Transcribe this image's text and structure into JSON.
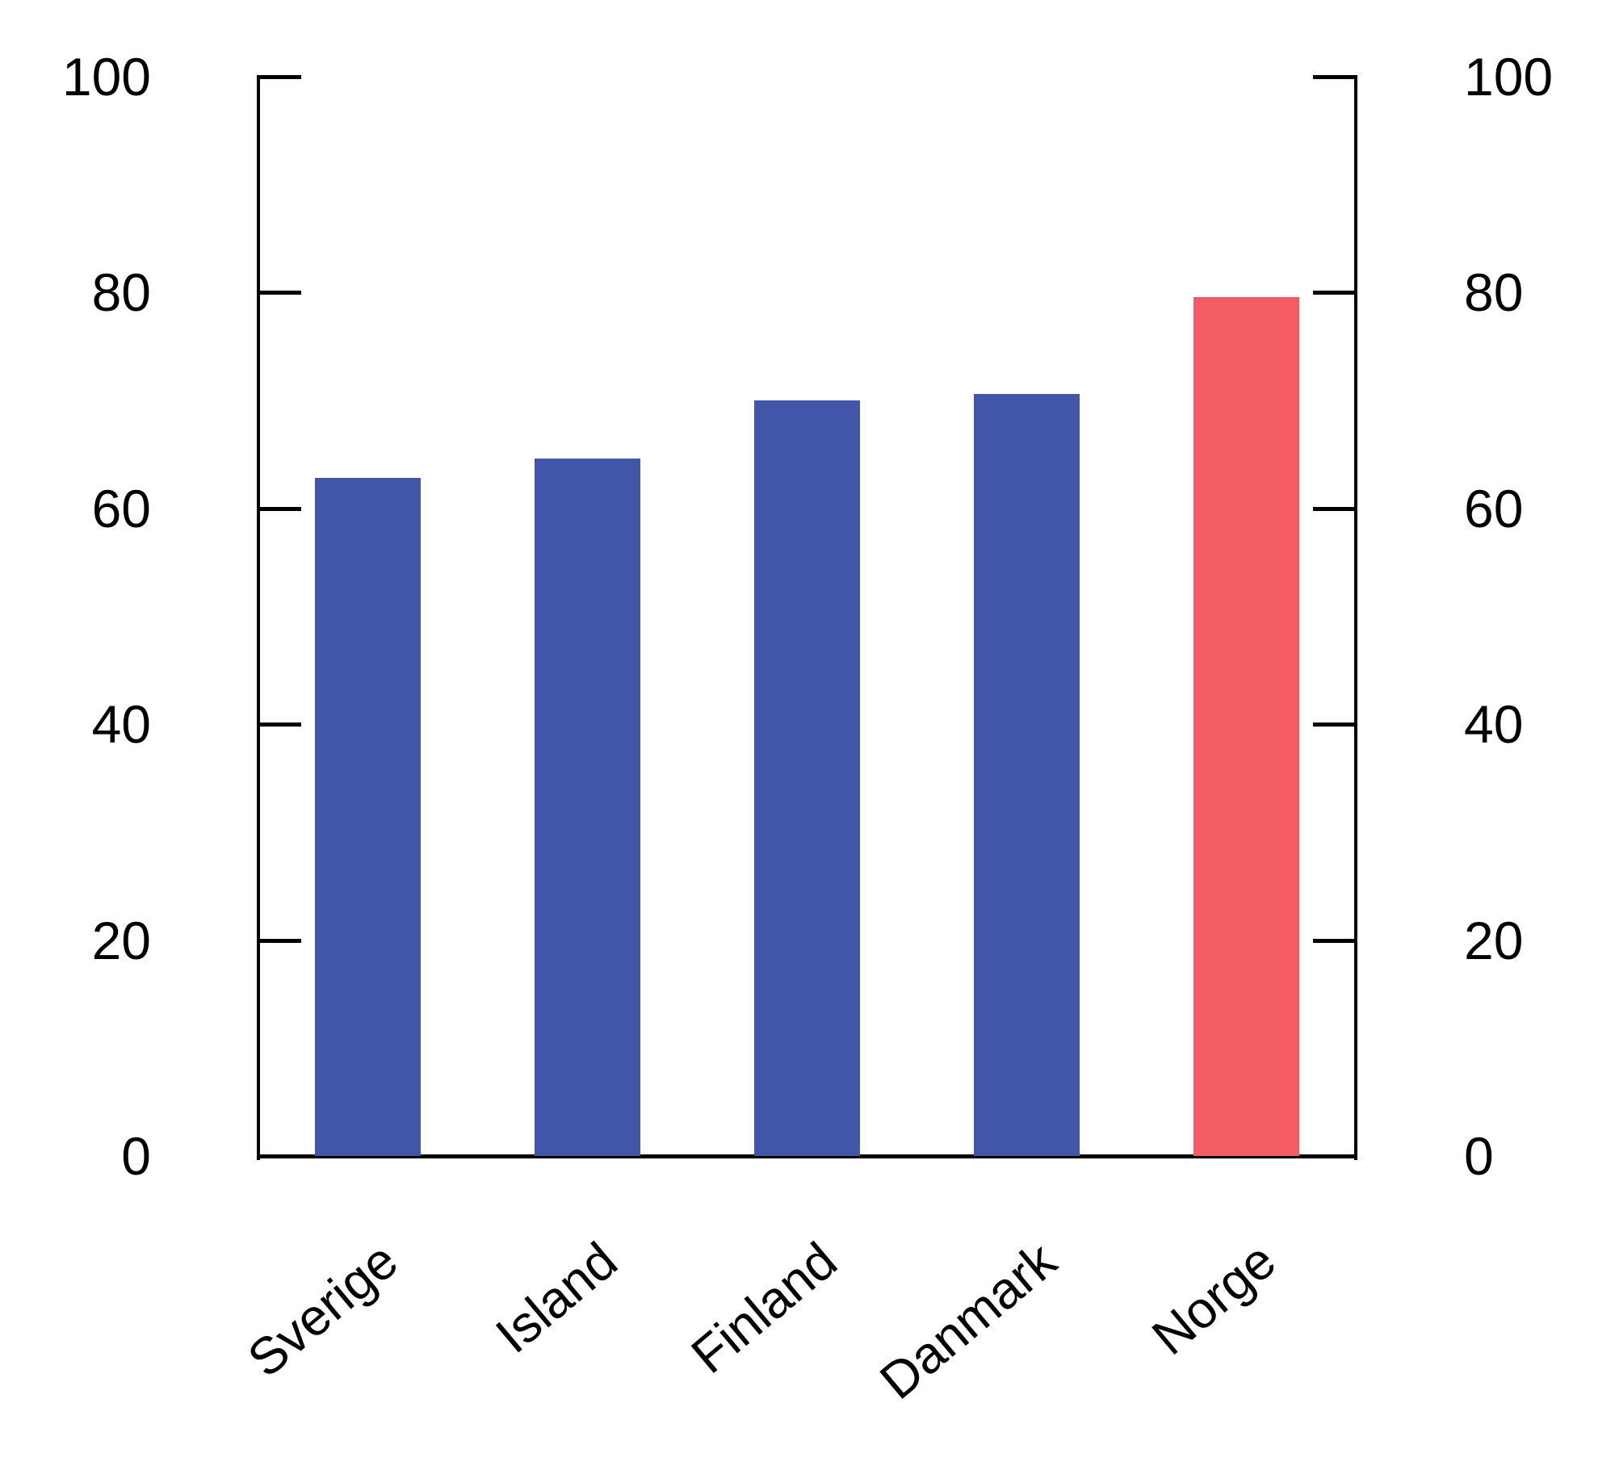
{
  "page": {
    "background": "#FFFFFF"
  },
  "chart_data": {
    "type": "bar",
    "title": "",
    "xlabel": "",
    "ylabel": "",
    "categories": [
      "Sverige",
      "Island",
      "Finland",
      "Danmark",
      "Norge"
    ],
    "values": [
      62.8,
      64.6,
      70.0,
      70.6,
      79.6
    ],
    "bar_colors": [
      "#4156A8",
      "#4156A8",
      "#4156A8",
      "#4156A8",
      "#F25C62"
    ],
    "highlight_category": "Norge",
    "highlight_color": "#F25C62",
    "default_bar_color": "#4156A8",
    "ylim": [
      0,
      100
    ],
    "yticks": [
      0,
      20,
      40,
      60,
      80,
      100
    ],
    "ytick_labels": [
      "0",
      "20",
      "40",
      "60",
      "80",
      "100"
    ],
    "y_axis_sides": [
      "left",
      "right"
    ],
    "x_tick_rotation_deg": 40,
    "grid": false,
    "legend": false,
    "axis_color": "#000000",
    "text_color": "#000000"
  }
}
